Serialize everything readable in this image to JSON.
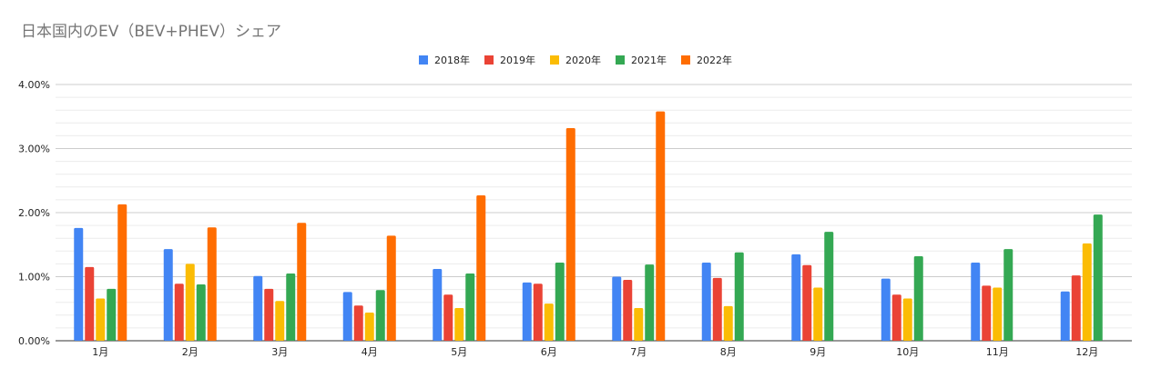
{
  "chart_data": {
    "type": "bar",
    "title": "日本国内のEV（BEV+PHEV）シェア",
    "categories": [
      "1月",
      "2月",
      "3月",
      "4月",
      "5月",
      "6月",
      "7月",
      "8月",
      "9月",
      "10月",
      "11月",
      "12月"
    ],
    "series": [
      {
        "name": "2018年",
        "color": "#4285f4",
        "values": [
          1.76,
          1.43,
          1.01,
          0.76,
          1.12,
          0.91,
          1.0,
          1.22,
          1.35,
          0.97,
          1.22,
          0.77
        ]
      },
      {
        "name": "2019年",
        "color": "#ea4335",
        "values": [
          1.15,
          0.89,
          0.81,
          0.55,
          0.72,
          0.89,
          0.95,
          0.98,
          1.18,
          0.72,
          0.86,
          1.02
        ]
      },
      {
        "name": "2020年",
        "color": "#fbbc04",
        "values": [
          0.66,
          1.2,
          0.62,
          0.44,
          0.51,
          0.58,
          0.51,
          0.54,
          0.83,
          0.66,
          0.83,
          1.52
        ]
      },
      {
        "name": "2021年",
        "color": "#34a853",
        "values": [
          0.81,
          0.88,
          1.05,
          0.79,
          1.05,
          1.22,
          1.19,
          1.38,
          1.7,
          1.32,
          1.43,
          1.97
        ]
      },
      {
        "name": "2022年",
        "color": "#ff6d01",
        "values": [
          2.13,
          1.77,
          1.84,
          1.64,
          2.27,
          3.32,
          3.58,
          null,
          null,
          null,
          null,
          null
        ]
      }
    ],
    "yticks": [
      "0.00%",
      "1.00%",
      "2.00%",
      "3.00%",
      "4.00%"
    ],
    "ylim": [
      0,
      4
    ],
    "grid": true,
    "legend_position": "top-center"
  }
}
